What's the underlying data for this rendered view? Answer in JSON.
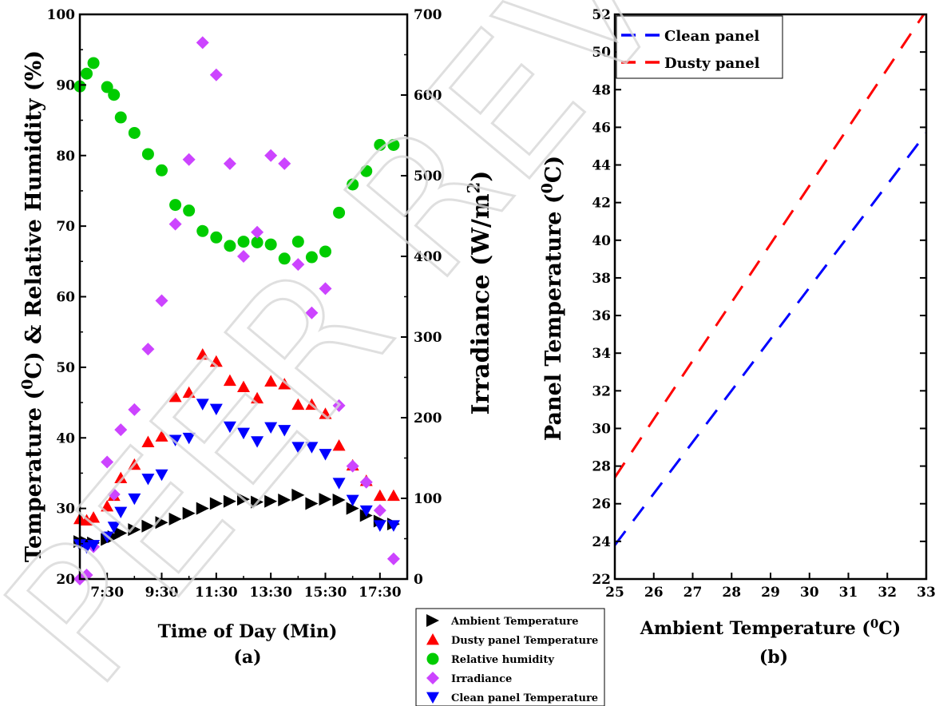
{
  "watermark": "PEER REVIEW",
  "chart_data": [
    {
      "type": "scatter",
      "panel_label": "(a)",
      "xlabel": "Time of Day (Min)",
      "ylabel_left": {
        "pre": "Temperature (",
        "sup": "0",
        "post": "C) & Relative Humidity (%)"
      },
      "ylabel_right": {
        "pre": "Irradiance (W/m",
        "sup": "2",
        "post": ")"
      },
      "xlim": [
        6.5,
        18.5
      ],
      "x_tick_values": [
        7.5,
        9.5,
        11.5,
        13.5,
        15.5,
        17.5
      ],
      "x_tick_labels": [
        "7:30",
        "9:30",
        "11:30",
        "13:30",
        "15:30",
        "17:30"
      ],
      "ylim_left": [
        20,
        100
      ],
      "y_ticks_left": [
        20,
        30,
        40,
        50,
        60,
        70,
        80,
        90,
        100
      ],
      "ylim_right": [
        0,
        700
      ],
      "y_ticks_right": [
        0,
        100,
        200,
        300,
        400,
        500,
        600,
        700
      ],
      "x": [
        6.5,
        6.75,
        7.0,
        7.5,
        7.75,
        8.0,
        8.5,
        9.0,
        9.5,
        10.0,
        10.5,
        11.0,
        11.5,
        12.0,
        12.5,
        13.0,
        13.5,
        14.0,
        14.5,
        15.0,
        15.5,
        16.0,
        16.5,
        17.0,
        17.5,
        18.0
      ],
      "series": [
        {
          "name": "Ambient Temperature",
          "axis": "left",
          "marker": "triangle-right",
          "color": "#000000",
          "values": [
            25.3,
            25.2,
            25.1,
            25.6,
            26.0,
            26.5,
            27.0,
            27.5,
            28.0,
            28.5,
            29.3,
            30.0,
            30.7,
            31.0,
            31.3,
            30.9,
            31.0,
            31.2,
            31.9,
            30.7,
            31.3,
            31.2,
            30.0,
            29.0,
            28.2,
            27.8
          ]
        },
        {
          "name": "Dusty panel Temperature",
          "axis": "left",
          "marker": "triangle-up",
          "color": "#ff0000",
          "values": [
            28.5,
            28.3,
            28.7,
            30.3,
            31.8,
            34.3,
            36.2,
            39.4,
            40.2,
            45.8,
            46.4,
            51.8,
            50.8,
            48.1,
            47.2,
            45.6,
            48.0,
            47.6,
            44.7,
            44.7,
            43.4,
            38.9,
            36.1,
            33.9,
            31.8,
            31.8
          ]
        },
        {
          "name": "Relative humidity",
          "axis": "left",
          "marker": "circle",
          "color": "#00cc00",
          "values": [
            89.8,
            91.6,
            93.1,
            89.7,
            88.6,
            85.4,
            83.2,
            80.2,
            77.9,
            73.0,
            72.2,
            69.3,
            68.4,
            67.2,
            67.8,
            67.7,
            67.4,
            65.4,
            67.8,
            65.6,
            66.4,
            71.9,
            75.9,
            77.8,
            81.5,
            81.5
          ]
        },
        {
          "name": "Irradiance",
          "axis": "right",
          "marker": "diamond",
          "color": "#cc44ff",
          "values": [
            0,
            5,
            40,
            145,
            105,
            185,
            210,
            285,
            345,
            440,
            520,
            665,
            625,
            515,
            400,
            430,
            525,
            515,
            390,
            330,
            360,
            215,
            140,
            120,
            85,
            25
          ]
        },
        {
          "name": "Clean panel Temperature",
          "axis": "left",
          "marker": "triangle-down",
          "color": "#0000ff",
          "values": [
            24.9,
            24.5,
            24.8,
            26.0,
            27.4,
            29.5,
            31.4,
            34.2,
            34.8,
            39.7,
            40.0,
            44.8,
            44.1,
            41.6,
            40.7,
            39.5,
            41.5,
            41.1,
            38.7,
            38.7,
            37.7,
            33.6,
            31.2,
            29.7,
            27.6,
            27.6
          ]
        }
      ]
    },
    {
      "type": "line",
      "panel_label": "(b)",
      "xlabel": {
        "pre": "Ambient Temperature (",
        "sup": "0",
        "post": "C)"
      },
      "ylabel": {
        "pre": "Panel Temperature (",
        "sup": "0",
        "post": "C)"
      },
      "xlim": [
        25,
        33
      ],
      "x_ticks": [
        25,
        26,
        27,
        28,
        29,
        30,
        31,
        32,
        33
      ],
      "ylim": [
        22,
        52
      ],
      "y_ticks": [
        22,
        24,
        26,
        28,
        30,
        32,
        34,
        36,
        38,
        40,
        42,
        44,
        46,
        48,
        50,
        52
      ],
      "legend_position": "top-left",
      "series": [
        {
          "name": "Clean panel",
          "color": "#0000ff",
          "dash": "dashed",
          "x": [
            25,
            33
          ],
          "y": [
            23.8,
            45.7
          ]
        },
        {
          "name": "Dusty panel",
          "color": "#ff0000",
          "dash": "dashed",
          "x": [
            25,
            33
          ],
          "y": [
            27.4,
            52.2
          ]
        }
      ]
    }
  ]
}
